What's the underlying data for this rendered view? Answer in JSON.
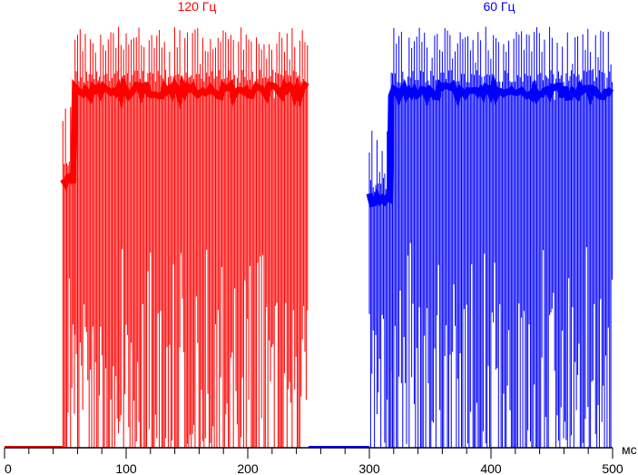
{
  "chart_data": {
    "type": "line",
    "title": "",
    "xlabel": "мс",
    "ylabel": "",
    "xlim": [
      0,
      500
    ],
    "ylim": [
      0,
      1
    ],
    "x_ticks": [
      0,
      100,
      200,
      300,
      400,
      500
    ],
    "x_tick_labels": [
      "0",
      "100",
      "200",
      "300",
      "400",
      "500"
    ],
    "x_minor_tick_step": 20,
    "grid": false,
    "series": [
      {
        "name": "120 Гц",
        "color": "#ff0000",
        "x_range": [
          0,
          250
        ],
        "pulse_period_ms": 2.1,
        "segments": [
          {
            "x_start": 0,
            "x_end": 48,
            "high": 0,
            "mean": 0,
            "low": 0
          },
          {
            "x_start": 48,
            "x_end": 58,
            "high": 0.8,
            "mean": 0.62,
            "low": 0.0
          },
          {
            "x_start": 58,
            "x_end": 250,
            "high": 0.98,
            "mean": 0.83,
            "low": 0.0
          }
        ]
      },
      {
        "name": "60 Гц",
        "color": "#0000ff",
        "x_range": [
          250,
          500
        ],
        "pulse_period_ms": 2.1,
        "segments": [
          {
            "x_start": 250,
            "x_end": 300,
            "high": 0,
            "mean": 0,
            "low": 0
          },
          {
            "x_start": 300,
            "x_end": 318,
            "high": 0.74,
            "mean": 0.58,
            "low": 0.0
          },
          {
            "x_start": 318,
            "x_end": 500,
            "high": 0.98,
            "mean": 0.83,
            "low": 0.0
          }
        ]
      }
    ]
  }
}
